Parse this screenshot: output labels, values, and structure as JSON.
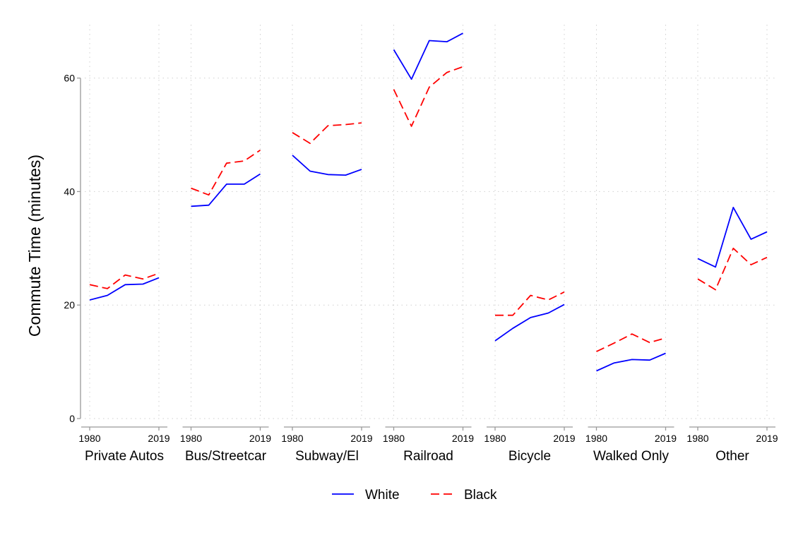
{
  "chart_data": {
    "type": "line",
    "ylabel": "Commute Time (minutes)",
    "ylim": [
      0,
      70
    ],
    "yticks": [
      0,
      20,
      40,
      60
    ],
    "x_years": [
      1980,
      1990,
      2000,
      2010,
      2019
    ],
    "x_tick_labels": [
      "1980",
      "2019"
    ],
    "grid": true,
    "legend_position": "bottom",
    "series_style": {
      "White": {
        "color": "#0000ff",
        "dash": "solid"
      },
      "Black": {
        "color": "#ff0000",
        "dash": "dashed"
      }
    },
    "panels": [
      {
        "label": "Private Autos",
        "series": [
          {
            "name": "White",
            "values": [
              20.9,
              21.7,
              23.6,
              23.7,
              24.8
            ]
          },
          {
            "name": "Black",
            "values": [
              23.6,
              22.9,
              25.3,
              24.6,
              25.6
            ]
          }
        ]
      },
      {
        "label": "Bus/Streetcar",
        "series": [
          {
            "name": "White",
            "values": [
              37.4,
              37.6,
              41.3,
              41.3,
              43.1
            ]
          },
          {
            "name": "Black",
            "values": [
              40.6,
              39.4,
              45.0,
              45.4,
              47.3
            ]
          }
        ]
      },
      {
        "label": "Subway/El",
        "series": [
          {
            "name": "White",
            "values": [
              46.4,
              43.6,
              43.0,
              42.9,
              43.9
            ]
          },
          {
            "name": "Black",
            "values": [
              50.4,
              48.5,
              51.6,
              51.8,
              52.1
            ]
          }
        ]
      },
      {
        "label": "Railroad",
        "series": [
          {
            "name": "White",
            "values": [
              65.0,
              59.8,
              66.6,
              66.4,
              67.9
            ]
          },
          {
            "name": "Black",
            "values": [
              58.0,
              51.5,
              58.4,
              61.0,
              62.0
            ]
          }
        ]
      },
      {
        "label": "Bicycle",
        "series": [
          {
            "name": "White",
            "values": [
              13.7,
              15.9,
              17.8,
              18.6,
              20.1
            ]
          },
          {
            "name": "Black",
            "values": [
              18.2,
              18.2,
              21.7,
              20.9,
              22.3
            ]
          }
        ]
      },
      {
        "label": "Walked Only",
        "series": [
          {
            "name": "White",
            "values": [
              8.4,
              9.8,
              10.4,
              10.3,
              11.5
            ]
          },
          {
            "name": "Black",
            "values": [
              11.8,
              13.3,
              14.9,
              13.4,
              14.2
            ]
          }
        ]
      },
      {
        "label": "Other",
        "series": [
          {
            "name": "White",
            "values": [
              28.2,
              26.7,
              37.2,
              31.6,
              32.9
            ]
          },
          {
            "name": "Black",
            "values": [
              24.6,
              22.7,
              30.0,
              27.1,
              28.4
            ]
          }
        ]
      }
    ],
    "legend": [
      "White",
      "Black"
    ]
  }
}
